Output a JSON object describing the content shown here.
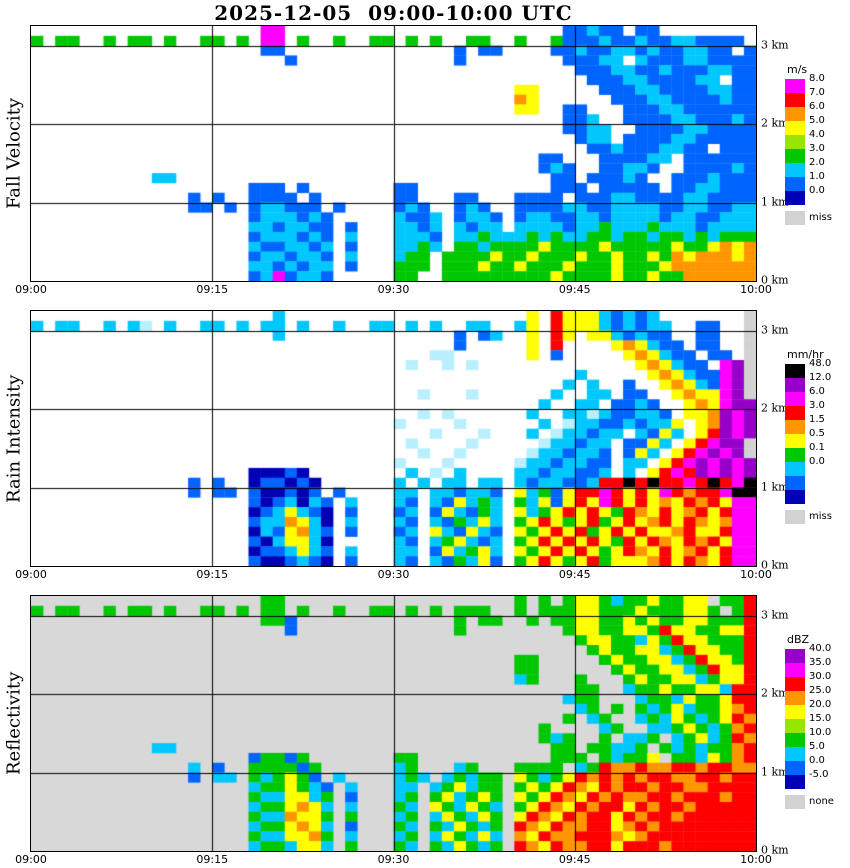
{
  "title": "2025-12-05  09:00-10:00 UTC",
  "x_axis": {
    "ticks": [
      "09:00",
      "09:15",
      "09:30",
      "09:45",
      "10:00"
    ]
  },
  "y_axis": {
    "ticks": [
      "3 km",
      "2 km",
      "1 km",
      "0 km"
    ],
    "km_values": [
      3,
      2,
      1,
      0
    ],
    "top_km": 3.25
  },
  "colors": {
    "map": {
      "p": "#b8f0ff",
      "c": "#00c8ff",
      "b": "#0064ff",
      "d": "#0000b4",
      "g": "#00c800",
      "l": "#96e600",
      "y": "#ffff00",
      "o": "#ff9600",
      "r": "#ff0000",
      "m": "#ff00ff",
      "v": "#9600c8",
      "k": "#000000",
      "x": "#d2d2d2",
      "w": "#ffffff"
    }
  },
  "chart_data": [
    {
      "type": "heatmap",
      "title": "Fall Velocity",
      "units": "m/s",
      "background": "#ffffff",
      "x_range": [
        "09:00",
        "10:00"
      ],
      "y_range_km": [
        0,
        3.25
      ],
      "cell_minutes": 1,
      "cell_km": 0.125,
      "legend": {
        "title": "m/s",
        "entries": [
          {
            "label": "8.0",
            "color": "#ff00ff"
          },
          {
            "label": "7.0",
            "color": "#ff0000"
          },
          {
            "label": "6.0",
            "color": "#ff9600"
          },
          {
            "label": "5.0",
            "color": "#ffff00"
          },
          {
            "label": "4.0",
            "color": "#96e600"
          },
          {
            "label": "3.0",
            "color": "#00c800"
          },
          {
            "label": "2.0",
            "color": "#00c8ff"
          },
          {
            "label": "1.0",
            "color": "#0064ff"
          },
          {
            "label": "0.0",
            "color": "#0000b4"
          },
          {
            "label": "miss",
            "color": "#d2d2d2",
            "gap": true
          }
        ]
      },
      "grid": [
        [
          "..........",
          ".........m",
          "m.........",
          "..........",
          "....bbcbb.",
          "bb........"
        ],
        [
          "g.gg..g.gg",
          ".g..gg.g.m",
          "m.g..g..gg",
          ".g.g..gg..",
          "g..gbbbcbb",
          "cbbccbbbb."
        ],
        [
          "..........",
          ".........b",
          "b.........",
          ".....b.bb.",
          "...bbcbbcc",
          "bcbbccbb.b"
        ],
        [
          "..........",
          "..........",
          ".b........",
          ".....b....",
          "....bbbcc.",
          "cbbbccbbbb"
        ],
        [
          "..........",
          "..........",
          "..........",
          "..........",
          ".....bbbcc",
          "bbcbbbccbb"
        ],
        [
          "..........",
          "..........",
          "..........",
          "..........",
          "......bbbc",
          "cbbbbcc.bb"
        ],
        [
          "..........",
          "..........",
          "..........",
          "..........",
          "yy.....bbb",
          "ccbbbbccbb"
        ],
        [
          "..........",
          "..........",
          "..........",
          "..........",
          "oy......bb",
          "bccbbbbcbb"
        ],
        [
          "..........",
          "..........",
          "..........",
          "..........",
          "yy..bb...b",
          "bbccbbbbbb"
        ],
        [
          "..........",
          "..........",
          "..........",
          "..........",
          "....bbc..b",
          "bbbccbbbcb"
        ],
        [
          "..........",
          "..........",
          "..........",
          "..........",
          "....bbcc..",
          "bbbbccbbbb"
        ],
        [
          "..........",
          "..........",
          "..........",
          "..........",
          ".....bcc.b",
          "bbbccbbbbb"
        ],
        [
          "..........",
          "..........",
          "..........",
          "..........",
          "......bbcb",
          "bbccbb.bbb"
        ],
        [
          "..........",
          "..........",
          "..........",
          "..........",
          "..bb...bbb",
          "bcc.bbbbbb"
        ],
        [
          "..........",
          "..........",
          "..........",
          "..........",
          "..bcb..bbc",
          "cb..bbbbcb"
        ],
        [
          "..........",
          "cc........",
          "..........",
          "..........",
          "...bb.bbbc",
          "b..bbbcbbb"
        ],
        [
          "..........",
          "........bb",
          "b.b.......",
          "bb........",
          "...bbb.bbb",
          "bb.bbccbbb"
        ],
        [
          "..........",
          "...b.b..bb",
          "bb.b......",
          "bb...bb...",
          "bbbb.bbbcc",
          "bbbbccbbbb"
        ],
        [
          "..........",
          "...bb.b.bc",
          "cbbb.b....",
          "bcb..bcb..",
          "bbbbccbbcc",
          "ccbbccbbcc"
        ],
        [
          "..........",
          "........bc",
          "ccbcb.....",
          "cbbc.bccb.",
          "bccbbccbcc",
          "ccbccbbccc"
        ],
        [
          "..........",
          "........cc",
          "bccbb.b...",
          "ccbc.cbcc.",
          "ccccbccgcc",
          "cgcccbcccc"
        ],
        [
          "..........",
          "........bc",
          "ccbcb.c...",
          "cccb.ccgcc",
          "cgcgccggcg",
          "gcggcgcggg"
        ],
        [
          "..........",
          "........cb",
          "bccbc.b...",
          "ccgc.ggcgg",
          "ggyggggygg",
          "gggyggyoyo"
        ],
        [
          "..........",
          "........bc",
          "cbccb.c...",
          "cgg.ggggyg",
          "gygggyggyg",
          "gygoyoooyo"
        ],
        [
          "..........",
          "........cc",
          "bcbcc.b...",
          "ggg.gggygg",
          "ygggygggyg",
          "ggyooooooo"
        ],
        [
          "..........",
          "........bc",
          "mbccb.....",
          "gg..gggggg",
          "gggyggggyg",
          "gyggoooooo"
        ]
      ]
    },
    {
      "type": "heatmap",
      "title": "Rain Intensity",
      "units": "mm/hr",
      "background": "#ffffff",
      "x_range": [
        "09:00",
        "10:00"
      ],
      "y_range_km": [
        0,
        3.25
      ],
      "cell_minutes": 1,
      "cell_km": 0.125,
      "legend": {
        "title": "mm/hr",
        "entries": [
          {
            "label": "48.0",
            "color": "#000000"
          },
          {
            "label": "12.0",
            "color": "#9600c8"
          },
          {
            "label": "6.0",
            "color": "#ff00ff"
          },
          {
            "label": "3.0",
            "color": "#ff0000"
          },
          {
            "label": "1.5",
            "color": "#ff9600"
          },
          {
            "label": "0.5",
            "color": "#ffff00"
          },
          {
            "label": "0.1",
            "color": "#00c800"
          },
          {
            "label": "0.0",
            "color": "#00c8ff"
          },
          {
            "label": "",
            "color": "#0064ff"
          },
          {
            "label": "",
            "color": "#0000b4"
          },
          {
            "label": "miss",
            "color": "#d2d2d2",
            "gap": true
          }
        ]
      },
      "grid": [
        [
          "..........",
          "..........",
          "c.........",
          "..........",
          ".y.ryyycbc",
          "bc.......x"
        ],
        [
          "c.cc..c.cp",
          ".c..cc.c.c",
          "c.c..c..cc",
          ".c.c..cc..",
          "cy.ryyycbc",
          "bcc..bb..x"
        ],
        [
          "..........",
          "..........",
          "c.........",
          ".....b.bc.",
          ".y.ry.yycb",
          "cbb..bb..x"
        ],
        [
          "..........",
          "..........",
          "..........",
          ".....b....",
          ".y.r....yo",
          "ycbb.bb..x"
        ],
        [
          "..........",
          "..........",
          "..........",
          "...pp.....",
          ".y.b.....y",
          "oycbb.bb.x"
        ],
        [
          "..........",
          "..........",
          "..........",
          ".p..p.p...",
          "..........",
          "yoycbb.mvx"
        ],
        [
          "..........",
          "..........",
          "..........",
          "..........",
          ".....c....",
          ".yoycbbmvx"
        ],
        [
          "..........",
          "..........",
          "..........",
          "..........",
          "....c.c..b",
          "..yoycbmvx"
        ],
        [
          "..........",
          "..........",
          "..........",
          "..p...p...",
          "...c..cc.b",
          "b..yoyymvx"
        ],
        [
          "..........",
          "..........",
          "..........",
          "..........",
          "..c..cc.bb",
          "cb..yoymvv"
        ],
        [
          "..........",
          "..........",
          "..........",
          "..p.p.....",
          ".c..ccpcbb",
          "ccb.yyovmv"
        ],
        [
          "..........",
          "..........",
          "..........",
          "p....p....",
          "..c.pccbbc",
          "bccy.yovmv"
        ],
        [
          "..........",
          "..........",
          "..........",
          "...p...p..",
          ".c.pccbcc.",
          "cbyc.yrvmv"
        ],
        [
          "..........",
          "..........",
          "..........",
          ".p....p...",
          "..pccbcc.b",
          "byc.yrmvvx"
        ],
        [
          "..........",
          "..........",
          "..........",
          "..p..p....",
          ".pccbccb.b",
          "yc.yrmvmvx"
        ],
        [
          "..........",
          "..........",
          "..........",
          "p...p.....",
          "pccbccbb.c",
          "c.yrmvmvmv"
        ],
        [
          "..........",
          "........dd",
          "dbd.......",
          ".c.p.c....",
          "ccbccbbc.c",
          ".yrmrvmvmv"
        ],
        [
          "..........",
          "...b.b..db",
          "bdbd......",
          "c.c.cc.cc.",
          "cbccbbcrrk",
          "rkrrmrkrmk"
        ],
        [
          "..........",
          "...b.bb.bd",
          "dbdb.b....",
          "cc.ccbccb.",
          "ycgbyrrmry",
          "rymrorrmkk"
        ],
        [
          "..........",
          "........bd",
          "bcdcb.c...",
          "cb.cbycgc.",
          "gcybyrymry",
          "ryoyrorymm"
        ],
        [
          "..........",
          "........db",
          "cycbd.b...",
          "bc.bycbgc.",
          "ycgyryrygr",
          "oyryoryrmm"
        ],
        [
          "..........",
          "........bc",
          "coycd.c...",
          "cb.cbgcyc.",
          "gyrygyrgyr",
          "yoryroyomm"
        ],
        [
          "..........",
          "........dc",
          "byocb.b...",
          "bc.ycbycb.",
          "ygyryrgyry",
          "ryyoryyrmm"
        ],
        [
          "..........",
          "........bd",
          "cyycd.....",
          "cb.cgycbc.",
          "gyryryrygr",
          "yroyrorymm"
        ],
        [
          "..........",
          "........db",
          "bcycb.c...",
          "cc.bycgyc.",
          "ygyryrygyr",
          "oyryoryrmm"
        ],
        [
          "..........",
          "........bd",
          "dbcbd.b...",
          "cb.cbgcyb.",
          "gyrygyrgyy",
          "yoryroyrmm"
        ]
      ]
    },
    {
      "type": "heatmap",
      "title": "Reflectivity",
      "units": "dBZ",
      "background": "#d8d8d8",
      "x_range": [
        "09:00",
        "10:00"
      ],
      "y_range_km": [
        0,
        3.25
      ],
      "cell_minutes": 1,
      "cell_km": 0.125,
      "legend": {
        "title": "dBZ",
        "entries": [
          {
            "label": "40.0",
            "color": "#9600c8"
          },
          {
            "label": "35.0",
            "color": "#ff00ff"
          },
          {
            "label": "30.0",
            "color": "#ff0000"
          },
          {
            "label": "25.0",
            "color": "#ff9600"
          },
          {
            "label": "20.0",
            "color": "#ffff00"
          },
          {
            "label": "15.0",
            "color": "#96e600"
          },
          {
            "label": "10.0",
            "color": "#00c800"
          },
          {
            "label": "5.0",
            "color": "#00c8ff"
          },
          {
            "label": "0.0",
            "color": "#0064ff"
          },
          {
            "label": "-5.0",
            "color": "#0000b4"
          },
          {
            "label": "none",
            "color": "#d2d2d2",
            "gap": true
          }
        ]
      },
      "grid": [
        [
          "..........",
          ".........g",
          "g.........",
          "..........",
          "g.g.gyygcg",
          "gyggyy.ggr"
        ],
        [
          "g.gg..g.gg",
          ".g..gg.g.g",
          "g.g..g..gg",
          ".g.g.ggg..",
          "g.gggyyggg",
          "ygggyyg.gr"
        ],
        [
          "..........",
          ".........g",
          "gb........",
          ".....g.gg.",
          ".g.ggyyggy",
          "gyggyygggr"
        ],
        [
          "..........",
          "..........",
          ".b........",
          ".....g....",
          "....gyyggy",
          "ygryyggyyr"
        ],
        [
          "..........",
          "..........",
          "..........",
          "..........",
          ".....gyygg",
          "cygryygggr"
        ],
        [
          "..........",
          "..........",
          "..........",
          "..........",
          "......gygg",
          "yycgryyggr"
        ],
        [
          "..........",
          "..........",
          "..........",
          "..........",
          "gg.....gyg",
          "gyycgryygr"
        ],
        [
          "..........",
          "..........",
          "..........",
          "..........",
          "gg......gy",
          "ggyycgryyr"
        ],
        [
          "..........",
          "..........",
          "..........",
          "..........",
          "cg...g...g",
          "yggyycgyyr"
        ],
        [
          "..........",
          "..........",
          "..........",
          "..........",
          ".....gg..c",
          "ggyggyycrr"
        ],
        [
          "..........",
          "..........",
          "..........",
          "..........",
          "....cgg...",
          "cggcyggyrr"
        ],
        [
          "..........",
          "..........",
          "..........",
          "..........",
          ".....cg.g.",
          "gcgycggyor"
        ],
        [
          "..........",
          "..........",
          "..........",
          "..........",
          "....g.cg..",
          "cgcygcgyro"
        ],
        [
          "..........",
          "..........",
          "..........",
          "..........",
          "..g....cg.",
          ".ccgygcgor"
        ],
        [
          "..........",
          "..........",
          "..........",
          "..........",
          "..gcg..g.c",
          "cg.cgycgro"
        ],
        [
          "..........",
          "cc........",
          "..........",
          "..........",
          "...gg.ggcc",
          "g.gcgcggor"
        ],
        [
          "..........",
          "........bg",
          "gbg.......",
          "gg........",
          "...ggg.gcg",
          "gy.ggcygor"
        ],
        [
          "..........",
          "...c.b..gg",
          "ggbg......",
          "cg...cg...",
          "gggg.cgroo",
          "roorrorroo"
        ],
        [
          "..........",
          "...b.cc.gc",
          "gygb.c....",
          "cgc.cgcgg.",
          "ygcgyroror",
          "orroorrorr"
        ],
        [
          "..........",
          "........cg",
          "gygcb.c...",
          "cc.cgycgg.",
          "gygyroyror",
          "rorroorrrr"
        ],
        [
          "..........",
          "........gc",
          "cyycg.b...",
          "cg.gycgyg.",
          "ygyroyroro",
          "orrorrrorr"
        ],
        [
          "..........",
          "........cg",
          "gyoyc.c...",
          "gc.ygcygc.",
          "gyroyrorry",
          "rorrorrrrr"
        ],
        [
          "..........",
          "........gc",
          "coyyg.g...",
          "cg.cygcyg.",
          "yroyrorryr",
          "orrorrrrrr"
        ],
        [
          "..........",
          "........cg",
          "gyoyc.b...",
          "gc.gcygcg.",
          "royroorryo",
          "rorrrrrrrr"
        ],
        [
          "..........",
          "........gc",
          "cyyog.c...",
          "cg.cygcyc.",
          "oyroorrroy",
          "orrrrrrrrr"
        ],
        [
          "..........",
          "........cg",
          "gcyyc.g...",
          "gc.gcygcg.",
          "royroorryr",
          "rrorrrrrrr"
        ]
      ]
    }
  ]
}
